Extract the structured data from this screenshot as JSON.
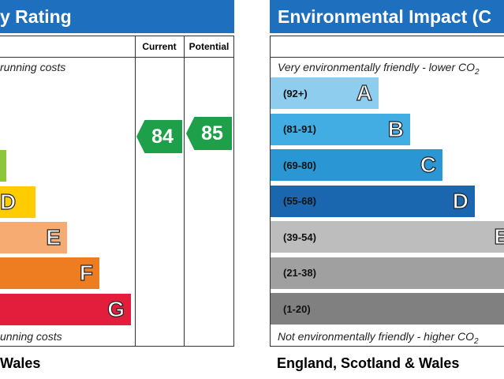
{
  "left": {
    "title": "y Rating",
    "columns": [
      "Current",
      "Potential"
    ],
    "top_note": "running costs",
    "bands": [
      "D",
      "E",
      "F",
      "G"
    ],
    "current": "84",
    "potential": "85",
    "bottom_note": "unning costs",
    "footer": "Wales"
  },
  "right": {
    "title": "Environmental Impact (C",
    "top_note": "Very environmentally friendly - lower CO",
    "top_sub": "2",
    "bands": [
      [
        "(92+)",
        "A"
      ],
      [
        "(81-91)",
        "B"
      ],
      [
        "(69-80)",
        "C"
      ],
      [
        "(55-68)",
        "D"
      ],
      [
        "(39-54)",
        "E"
      ],
      [
        "(21-38)",
        ""
      ],
      [
        "(1-20)",
        ""
      ]
    ],
    "bottom_note": "Not environmentally friendly - higher CO",
    "bottom_sub": "2",
    "footer": "England, Scotland & Wales"
  }
}
